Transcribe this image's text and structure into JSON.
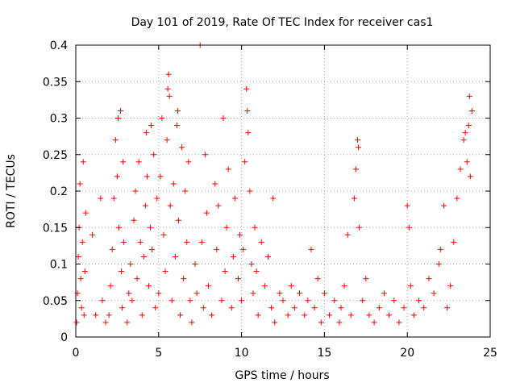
{
  "chart_data": {
    "type": "scatter",
    "title": "Day 101 of 2019, Rate Of TEC Index for receiver cas1",
    "xlabel": "GPS time / hours",
    "ylabel": "ROTI / TECUs",
    "xlim": [
      0,
      25
    ],
    "ylim": [
      0,
      0.4
    ],
    "xticks": [
      0,
      5,
      10,
      15,
      20,
      25
    ],
    "xtick_labels": [
      "0",
      "5",
      "10",
      "15",
      "20",
      "25"
    ],
    "yticks": [
      0,
      0.05,
      0.1,
      0.15,
      0.2,
      0.25,
      0.3,
      0.35,
      0.4
    ],
    "ytick_labels": [
      "0",
      "0.05",
      "0.1",
      "0.15",
      "0.2",
      "0.25",
      "0.3",
      "0.35",
      "0.4"
    ],
    "grid": true,
    "marker": "+",
    "color": "#ff0000",
    "series": [
      {
        "name": "ROTI",
        "points": [
          [
            0.05,
            0.02
          ],
          [
            0.1,
            0.06
          ],
          [
            0.15,
            0.11
          ],
          [
            0.2,
            0.15
          ],
          [
            0.25,
            0.21
          ],
          [
            0.3,
            0.08
          ],
          [
            0.35,
            0.04
          ],
          [
            0.4,
            0.13
          ],
          [
            0.45,
            0.24
          ],
          [
            0.5,
            0.03
          ],
          [
            0.55,
            0.09
          ],
          [
            0.6,
            0.17
          ],
          [
            1.0,
            0.14
          ],
          [
            1.2,
            0.03
          ],
          [
            1.5,
            0.19
          ],
          [
            1.6,
            0.05
          ],
          [
            1.8,
            0.02
          ],
          [
            2.0,
            0.03
          ],
          [
            2.1,
            0.07
          ],
          [
            2.2,
            0.12
          ],
          [
            2.3,
            0.19
          ],
          [
            2.4,
            0.27
          ],
          [
            2.5,
            0.22
          ],
          [
            2.55,
            0.3
          ],
          [
            2.6,
            0.15
          ],
          [
            2.7,
            0.31
          ],
          [
            2.75,
            0.09
          ],
          [
            2.8,
            0.04
          ],
          [
            2.85,
            0.24
          ],
          [
            2.9,
            0.13
          ],
          [
            3.1,
            0.02
          ],
          [
            3.2,
            0.06
          ],
          [
            3.3,
            0.1
          ],
          [
            3.4,
            0.05
          ],
          [
            3.5,
            0.16
          ],
          [
            3.6,
            0.2
          ],
          [
            3.7,
            0.08
          ],
          [
            3.8,
            0.24
          ],
          [
            3.9,
            0.13
          ],
          [
            4.0,
            0.03
          ],
          [
            4.1,
            0.11
          ],
          [
            4.2,
            0.18
          ],
          [
            4.25,
            0.28
          ],
          [
            4.3,
            0.22
          ],
          [
            4.4,
            0.07
          ],
          [
            4.5,
            0.15
          ],
          [
            4.55,
            0.29
          ],
          [
            4.6,
            0.12
          ],
          [
            4.7,
            0.25
          ],
          [
            4.8,
            0.04
          ],
          [
            4.9,
            0.19
          ],
          [
            5.0,
            0.06
          ],
          [
            5.1,
            0.22
          ],
          [
            5.2,
            0.3
          ],
          [
            5.3,
            0.14
          ],
          [
            5.4,
            0.09
          ],
          [
            5.5,
            0.27
          ],
          [
            5.55,
            0.34
          ],
          [
            5.6,
            0.36
          ],
          [
            5.65,
            0.33
          ],
          [
            5.7,
            0.18
          ],
          [
            5.8,
            0.05
          ],
          [
            5.9,
            0.21
          ],
          [
            6.0,
            0.11
          ],
          [
            6.1,
            0.29
          ],
          [
            6.15,
            0.31
          ],
          [
            6.2,
            0.16
          ],
          [
            6.3,
            0.03
          ],
          [
            6.4,
            0.26
          ],
          [
            6.5,
            0.08
          ],
          [
            6.6,
            0.2
          ],
          [
            6.7,
            0.13
          ],
          [
            6.8,
            0.24
          ],
          [
            6.9,
            0.05
          ],
          [
            7.0,
            0.02
          ],
          [
            7.2,
            0.1
          ],
          [
            7.3,
            0.06
          ],
          [
            7.5,
            0.4
          ],
          [
            7.6,
            0.13
          ],
          [
            7.7,
            0.04
          ],
          [
            7.8,
            0.25
          ],
          [
            7.9,
            0.17
          ],
          [
            8.0,
            0.07
          ],
          [
            8.2,
            0.03
          ],
          [
            8.4,
            0.21
          ],
          [
            8.5,
            0.12
          ],
          [
            8.6,
            0.18
          ],
          [
            8.8,
            0.05
          ],
          [
            8.9,
            0.3
          ],
          [
            9.0,
            0.09
          ],
          [
            9.1,
            0.15
          ],
          [
            9.2,
            0.23
          ],
          [
            9.4,
            0.04
          ],
          [
            9.5,
            0.11
          ],
          [
            9.6,
            0.19
          ],
          [
            9.8,
            0.08
          ],
          [
            9.9,
            0.14
          ],
          [
            10.0,
            0.05
          ],
          [
            10.1,
            0.12
          ],
          [
            10.2,
            0.24
          ],
          [
            10.3,
            0.34
          ],
          [
            10.35,
            0.31
          ],
          [
            10.4,
            0.28
          ],
          [
            10.5,
            0.2
          ],
          [
            10.6,
            0.1
          ],
          [
            10.7,
            0.06
          ],
          [
            10.8,
            0.15
          ],
          [
            10.9,
            0.09
          ],
          [
            11.0,
            0.03
          ],
          [
            11.2,
            0.13
          ],
          [
            11.4,
            0.07
          ],
          [
            11.6,
            0.11
          ],
          [
            11.8,
            0.04
          ],
          [
            11.9,
            0.19
          ],
          [
            12.0,
            0.02
          ],
          [
            12.3,
            0.06
          ],
          [
            12.5,
            0.05
          ],
          [
            12.8,
            0.03
          ],
          [
            13.0,
            0.07
          ],
          [
            13.2,
            0.04
          ],
          [
            13.5,
            0.06
          ],
          [
            13.8,
            0.03
          ],
          [
            14.0,
            0.05
          ],
          [
            14.2,
            0.12
          ],
          [
            14.4,
            0.04
          ],
          [
            14.6,
            0.08
          ],
          [
            14.8,
            0.02
          ],
          [
            15.0,
            0.06
          ],
          [
            15.3,
            0.03
          ],
          [
            15.6,
            0.05
          ],
          [
            15.9,
            0.02
          ],
          [
            16.0,
            0.04
          ],
          [
            16.2,
            0.07
          ],
          [
            16.4,
            0.14
          ],
          [
            16.6,
            0.03
          ],
          [
            16.8,
            0.19
          ],
          [
            16.9,
            0.23
          ],
          [
            17.0,
            0.27
          ],
          [
            17.05,
            0.26
          ],
          [
            17.1,
            0.15
          ],
          [
            17.3,
            0.05
          ],
          [
            17.5,
            0.08
          ],
          [
            17.7,
            0.03
          ],
          [
            18.0,
            0.02
          ],
          [
            18.3,
            0.04
          ],
          [
            18.6,
            0.06
          ],
          [
            18.9,
            0.03
          ],
          [
            19.2,
            0.05
          ],
          [
            19.5,
            0.02
          ],
          [
            19.8,
            0.04
          ],
          [
            20.0,
            0.18
          ],
          [
            20.1,
            0.15
          ],
          [
            20.2,
            0.07
          ],
          [
            20.4,
            0.03
          ],
          [
            20.7,
            0.05
          ],
          [
            21.0,
            0.04
          ],
          [
            21.3,
            0.08
          ],
          [
            21.6,
            0.06
          ],
          [
            21.9,
            0.1
          ],
          [
            22.0,
            0.12
          ],
          [
            22.2,
            0.18
          ],
          [
            22.4,
            0.04
          ],
          [
            22.6,
            0.07
          ],
          [
            22.8,
            0.13
          ],
          [
            23.0,
            0.19
          ],
          [
            23.2,
            0.23
          ],
          [
            23.4,
            0.27
          ],
          [
            23.5,
            0.28
          ],
          [
            23.6,
            0.24
          ],
          [
            23.7,
            0.29
          ],
          [
            23.75,
            0.33
          ],
          [
            23.8,
            0.22
          ],
          [
            23.9,
            0.31
          ]
        ]
      }
    ]
  }
}
